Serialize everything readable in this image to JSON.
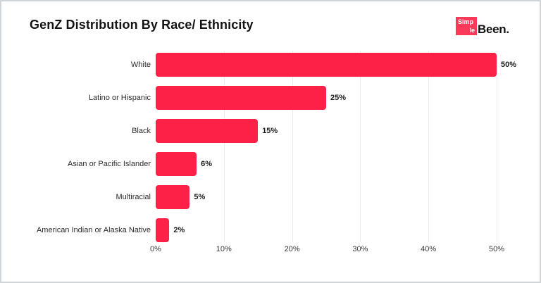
{
  "frame": {
    "background": "#ffffff",
    "border_color": "#d2d5d8"
  },
  "header": {
    "title": "GenZ Distribution By Race/ Ethnicity"
  },
  "logo": {
    "box_line1": "Simp",
    "box_line2": "le",
    "suffix": "Been.",
    "box_color": "#fb3a59",
    "box_text_color": "#ffffff",
    "suffix_color": "#131313"
  },
  "chart_data": {
    "type": "bar",
    "orientation": "horizontal",
    "title": "GenZ Distribution By Race/ Ethnicity",
    "categories": [
      "White",
      "Latino or Hispanic",
      "Black",
      "Asian or Pacific Islander",
      "Multiracial",
      "American Indian or Alaska Native"
    ],
    "values": [
      50,
      25,
      15,
      6,
      5,
      2
    ],
    "value_labels": [
      "50%",
      "25%",
      "15%",
      "6%",
      "5%",
      "2%"
    ],
    "x_tick_values": [
      0,
      10,
      20,
      30,
      40,
      50
    ],
    "x_tick_labels": [
      "0%",
      "10%",
      "20%",
      "30%",
      "40%",
      "50%"
    ],
    "xlim": [
      0,
      56
    ],
    "grid": "vertical-only",
    "legend": "none",
    "bar_color": "#fd2147",
    "gridline_color": "#ececec",
    "category_label_color": "#2d2d2d",
    "value_label_color": "#1c1c1c",
    "tick_label_color": "#3a3a3a"
  }
}
